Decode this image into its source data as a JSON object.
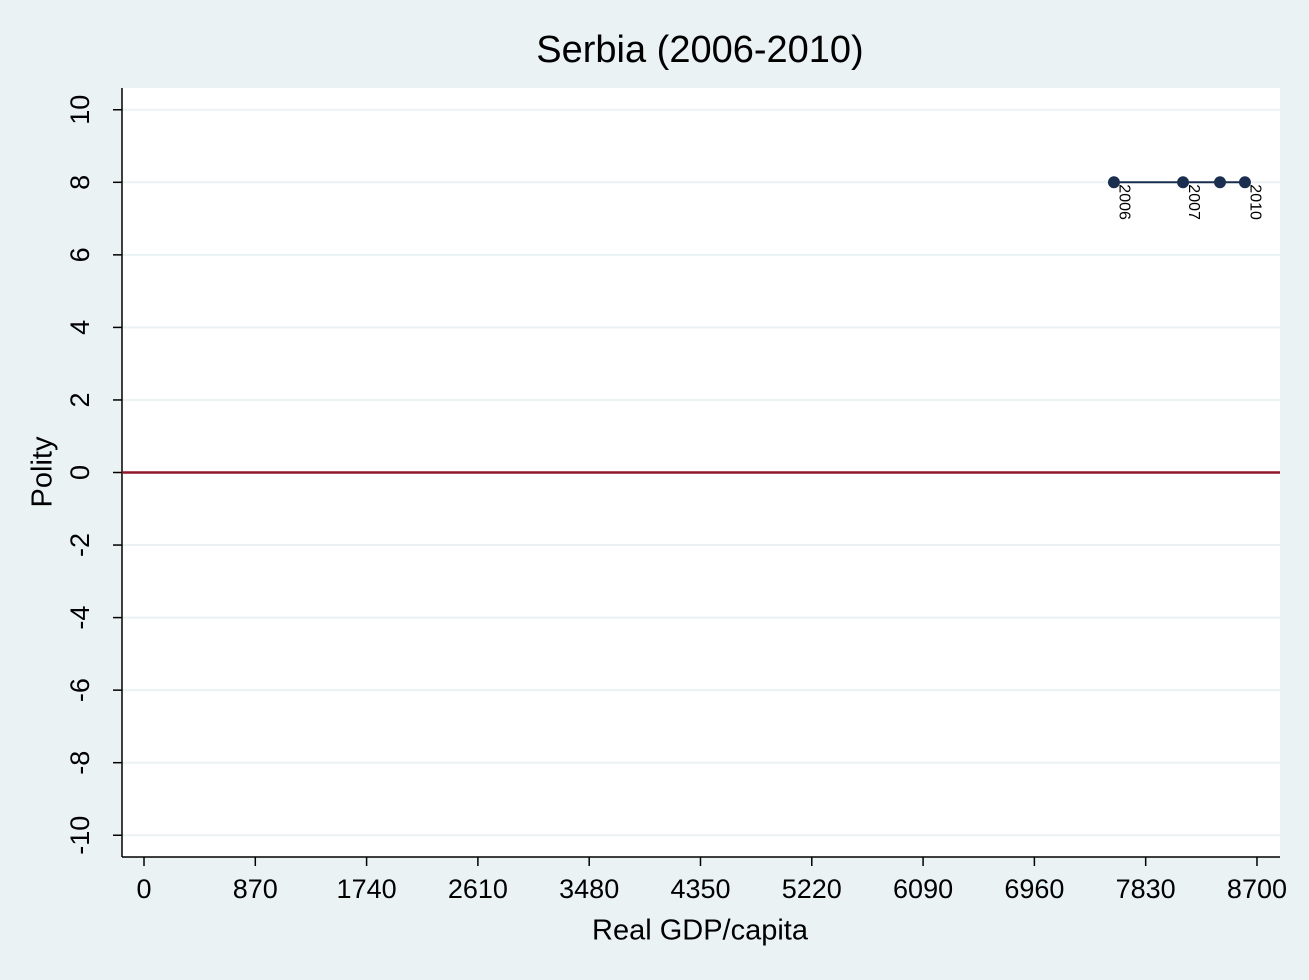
{
  "chart_data": {
    "type": "line",
    "title": "Serbia (2006-2010)",
    "xlabel": "Real GDP/capita",
    "ylabel": "Polity",
    "x": [
      7582,
      8122,
      8411,
      8606
    ],
    "series": [
      {
        "color": "#1a2e4f",
        "values": [
          8,
          8,
          8,
          8
        ],
        "point_labels": [
          "2006",
          "2007",
          null,
          "2010"
        ]
      }
    ],
    "xlim": [
      -172,
      8880
    ],
    "xticks": [
      0,
      870,
      1740,
      2610,
      3480,
      4350,
      5220,
      6090,
      6960,
      7830,
      8700
    ],
    "ylim": [
      -10.6,
      10.6
    ],
    "yticks": [
      -10,
      -8,
      -6,
      -4,
      -2,
      0,
      2,
      4,
      6,
      8,
      10
    ],
    "y_refline": 0,
    "refline_color": "#90162c",
    "grid": true
  }
}
